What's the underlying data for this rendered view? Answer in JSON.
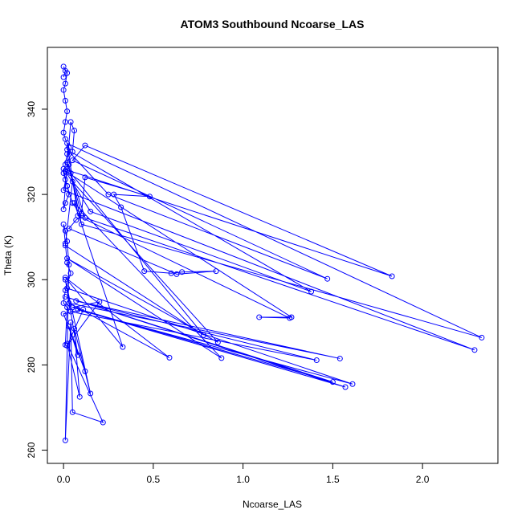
{
  "chart_data": {
    "type": "scatter",
    "title": "ATOM3 Southbound Ncoarse_LAS",
    "xlabel": "Ncoarse_LAS",
    "ylabel": "Theta (K)",
    "xlim": [
      -0.09,
      2.42
    ],
    "ylim": [
      256.9,
      354.5
    ],
    "xticks": [
      0.0,
      0.5,
      1.0,
      1.5,
      2.0
    ],
    "xtick_labels": [
      "0.0",
      "0.5",
      "1.0",
      "1.5",
      "2.0"
    ],
    "yticks": [
      260,
      280,
      300,
      320,
      340
    ],
    "ytick_labels": [
      "260",
      "280",
      "300",
      "320",
      "340"
    ],
    "grid": false,
    "legend": "none",
    "style": "points connected by lines",
    "series": [
      {
        "color": "#0000ff",
        "x": [
          0.0,
          0.01,
          0.0,
          0.02,
          0.01,
          0.0,
          0.01,
          0.02,
          0.01,
          0.0,
          0.01,
          0.03,
          0.02,
          0.01,
          0.0,
          0.01,
          0.02,
          0.03,
          0.01,
          0.0,
          0.04,
          0.06,
          0.05,
          0.02,
          0.1,
          0.12,
          0.48,
          0.28,
          0.32,
          0.45,
          0.6,
          0.66,
          0.85,
          0.63,
          0.03,
          0.07,
          0.1,
          0.05,
          0.02,
          0.0,
          1.83,
          0.12,
          0.05,
          1.47,
          0.25,
          0.02,
          1.38,
          0.15,
          0.01,
          1.27,
          1.09,
          1.26,
          0.08,
          0.02,
          2.33,
          0.1,
          0.03,
          0.0,
          2.29,
          0.12,
          0.04,
          0.78,
          0.01,
          0.05,
          0.86,
          0.02,
          0.88,
          0.06,
          0.33,
          0.01,
          0.59,
          0.03,
          1.54,
          0.07,
          1.41,
          0.04,
          0.02,
          1.61,
          0.08,
          1.57,
          0.01,
          1.5,
          0.05,
          0.2,
          0.02,
          0.11,
          0.0,
          0.12,
          0.03,
          0.08,
          0.01,
          0.15,
          0.06,
          0.09,
          0.02,
          0.22,
          0.05,
          0.04,
          0.01,
          0.03,
          0.02,
          0.01,
          0.0,
          0.01,
          0.02,
          0.04,
          0.01,
          0.0,
          0.02,
          0.01
        ],
        "y": [
          347.5,
          349.0,
          350.0,
          348.5,
          346.0,
          344.5,
          342.0,
          339.5,
          337.0,
          334.5,
          333.0,
          331.0,
          329.5,
          327.0,
          325.0,
          323.5,
          322.0,
          320.0,
          318.0,
          316.5,
          337.0,
          335.0,
          330.0,
          327.5,
          315.5,
          324.0,
          319.5,
          320.0,
          317.0,
          302.0,
          301.5,
          301.8,
          302.0,
          301.3,
          312.0,
          314.0,
          315.0,
          318.0,
          322.0,
          326.0,
          300.8,
          331.5,
          328.0,
          300.2,
          320.0,
          330.5,
          297.2,
          316.0,
          325.5,
          291.2,
          291.2,
          291.0,
          315.0,
          332.0,
          286.4,
          313.0,
          327.0,
          321.0,
          283.5,
          314.5,
          325.0,
          287.0,
          308.0,
          323.0,
          285.3,
          305.0,
          281.6,
          318.0,
          284.2,
          300.5,
          281.7,
          294.5,
          281.5,
          295.0,
          281.1,
          292.5,
          298.0,
          275.5,
          293.0,
          274.8,
          296.0,
          276.0,
          293.5,
          294.8,
          284.5,
          293.0,
          292.0,
          278.5,
          289.0,
          282.3,
          300.0,
          273.3,
          288.5,
          272.5,
          285.0,
          266.5,
          268.9,
          290.0,
          262.3,
          303.5,
          309.0,
          311.5,
          313.0,
          308.5,
          304.0,
          301.5,
          297.5,
          294.5,
          293.5,
          284.7
        ]
      }
    ]
  }
}
